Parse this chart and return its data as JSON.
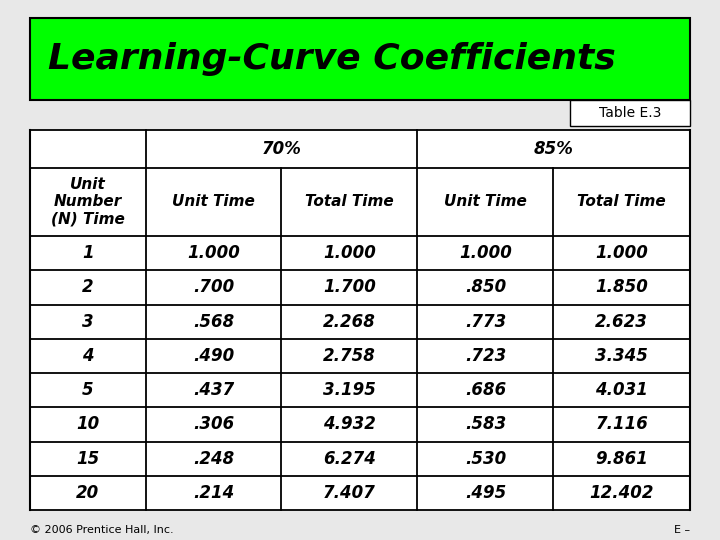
{
  "title": "Learning-Curve Coefficients",
  "table_ref": "Table E.3",
  "header_row1_labels": [
    "70%",
    "85%"
  ],
  "header_row2": [
    "Unit\nNumber\n(N) Time",
    "Unit Time",
    "Total Time",
    "Unit Time",
    "Total Time"
  ],
  "rows": [
    [
      "1",
      "1.000",
      "1.000",
      "1.000",
      "1.000"
    ],
    [
      "2",
      ".700",
      "1.700",
      ".850",
      "1.850"
    ],
    [
      "3",
      ".568",
      "2.268",
      ".773",
      "2.623"
    ],
    [
      "4",
      ".490",
      "2.758",
      ".723",
      "3.345"
    ],
    [
      "5",
      ".437",
      "3.195",
      ".686",
      "4.031"
    ],
    [
      "10",
      ".306",
      "4.932",
      ".583",
      "7.116"
    ],
    [
      "15",
      ".248",
      "6.274",
      ".530",
      "9.861"
    ],
    [
      "20",
      ".214",
      "7.407",
      ".495",
      "12.402"
    ]
  ],
  "title_bg": "#00FF00",
  "title_fontsize": 26,
  "table_ref_fontsize": 10,
  "header1_fontsize": 12,
  "header2_fontsize": 11,
  "data_fontsize": 12,
  "footer_left": "© 2006 Prentice Hall, Inc.",
  "footer_right": "E –",
  "bg_color": "#e8e8e8",
  "table_bg": "#ffffff"
}
